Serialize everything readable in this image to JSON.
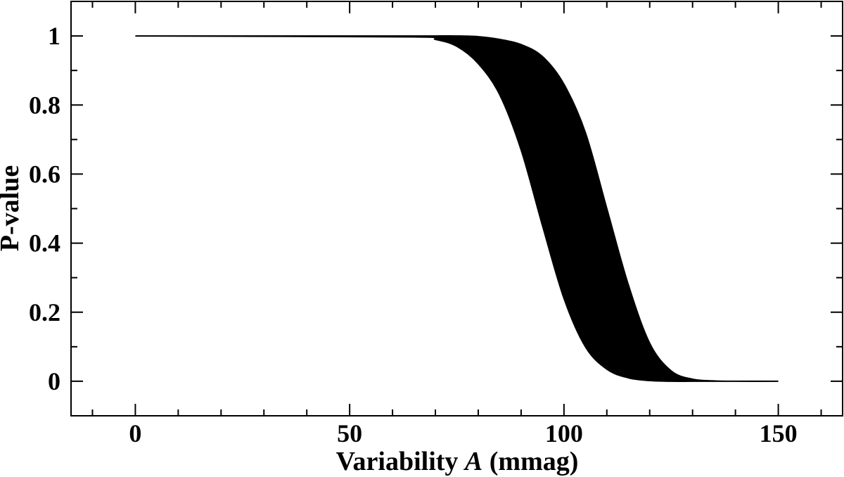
{
  "chart_data": {
    "type": "area",
    "title": "",
    "xlabel_parts": [
      "Variability ",
      "A",
      " (mmag)"
    ],
    "ylabel": "P-value",
    "xlim": [
      -15,
      165
    ],
    "ylim": [
      -0.1,
      1.1
    ],
    "x_ticks": [
      0,
      50,
      100,
      150
    ],
    "x_tick_labels": [
      "0",
      "50",
      "100",
      "150"
    ],
    "x_minor_step": 10,
    "y_ticks": [
      0,
      0.2,
      0.4,
      0.6,
      0.8,
      1
    ],
    "y_tick_labels": [
      "0",
      "0.2",
      "0.4",
      "0.6",
      "0.8",
      "1"
    ],
    "y_minor_step": 0.1,
    "grid": false,
    "band": {
      "fill_color": "#000000",
      "x": [
        0,
        65,
        70,
        75,
        80,
        85,
        90,
        95,
        100,
        105,
        110,
        115,
        120,
        125,
        130,
        135,
        140,
        150
      ],
      "lower": [
        1.0,
        0.997,
        0.99,
        0.97,
        0.92,
        0.83,
        0.67,
        0.45,
        0.24,
        0.1,
        0.035,
        0.01,
        0.002,
        0.0,
        0.0,
        0.0,
        0.0,
        0.0
      ],
      "upper": [
        1.0,
        1.0,
        1.0,
        1.0,
        0.998,
        0.99,
        0.975,
        0.94,
        0.86,
        0.72,
        0.5,
        0.28,
        0.11,
        0.03,
        0.006,
        0.001,
        0.0,
        0.0
      ]
    }
  }
}
